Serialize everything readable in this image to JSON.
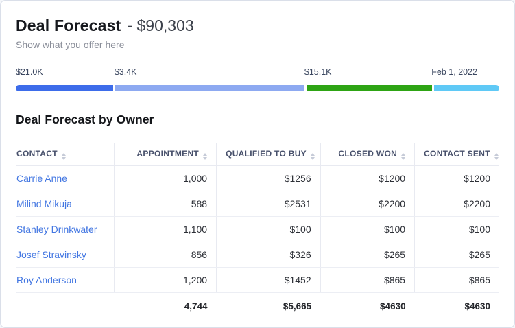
{
  "header": {
    "title": "Deal Forecast",
    "title_suffix": "- $90,303",
    "subtitle": "Show what you offer here"
  },
  "progress": {
    "segments": [
      {
        "label": "$21.0K",
        "color": "#3d6cea",
        "width_pct": 20.1,
        "label_left_pct": 0
      },
      {
        "label": "$3.4K",
        "color": "#8da9f1",
        "width_pct": 39.2,
        "label_left_pct": 20.4
      },
      {
        "label": "$15.1K",
        "color": "#2ea414",
        "width_pct": 26.0,
        "label_left_pct": 59.7
      },
      {
        "label": "Feb 1, 2022",
        "color": "#5fc9f6",
        "width_pct": 13.9,
        "label_left_pct": 86.0
      }
    ]
  },
  "table": {
    "title": "Deal Forecast by Owner",
    "columns": [
      "CONTACT",
      "APPOINTMENT",
      "QUALIFIED TO BUY",
      "CLOSED WON",
      "CONTACT SENT"
    ],
    "rows": [
      {
        "contact": "Carrie Anne",
        "appointment": "1,000",
        "qualified_to_buy": "$1256",
        "closed_won": "$1200",
        "contact_sent": "$1200"
      },
      {
        "contact": "Milind Mikuja",
        "appointment": "588",
        "qualified_to_buy": "$2531",
        "closed_won": "$2200",
        "contact_sent": "$2200"
      },
      {
        "contact": "Stanley Drinkwater",
        "appointment": "1,100",
        "qualified_to_buy": "$100",
        "closed_won": "$100",
        "contact_sent": "$100"
      },
      {
        "contact": "Josef Stravinsky",
        "appointment": "856",
        "qualified_to_buy": "$326",
        "closed_won": "$265",
        "contact_sent": "$265"
      },
      {
        "contact": "Roy Anderson",
        "appointment": "1,200",
        "qualified_to_buy": "$1452",
        "closed_won": "$865",
        "contact_sent": "$865"
      }
    ],
    "totals": {
      "appointment": "4,744",
      "qualified_to_buy": "$5,665",
      "closed_won": "$4630",
      "contact_sent": "$4630"
    }
  },
  "colors": {
    "link_blue": "#4377e2",
    "card_border": "#dadfe9",
    "table_border": "#e8eaf1",
    "header_text": "#47506b"
  }
}
